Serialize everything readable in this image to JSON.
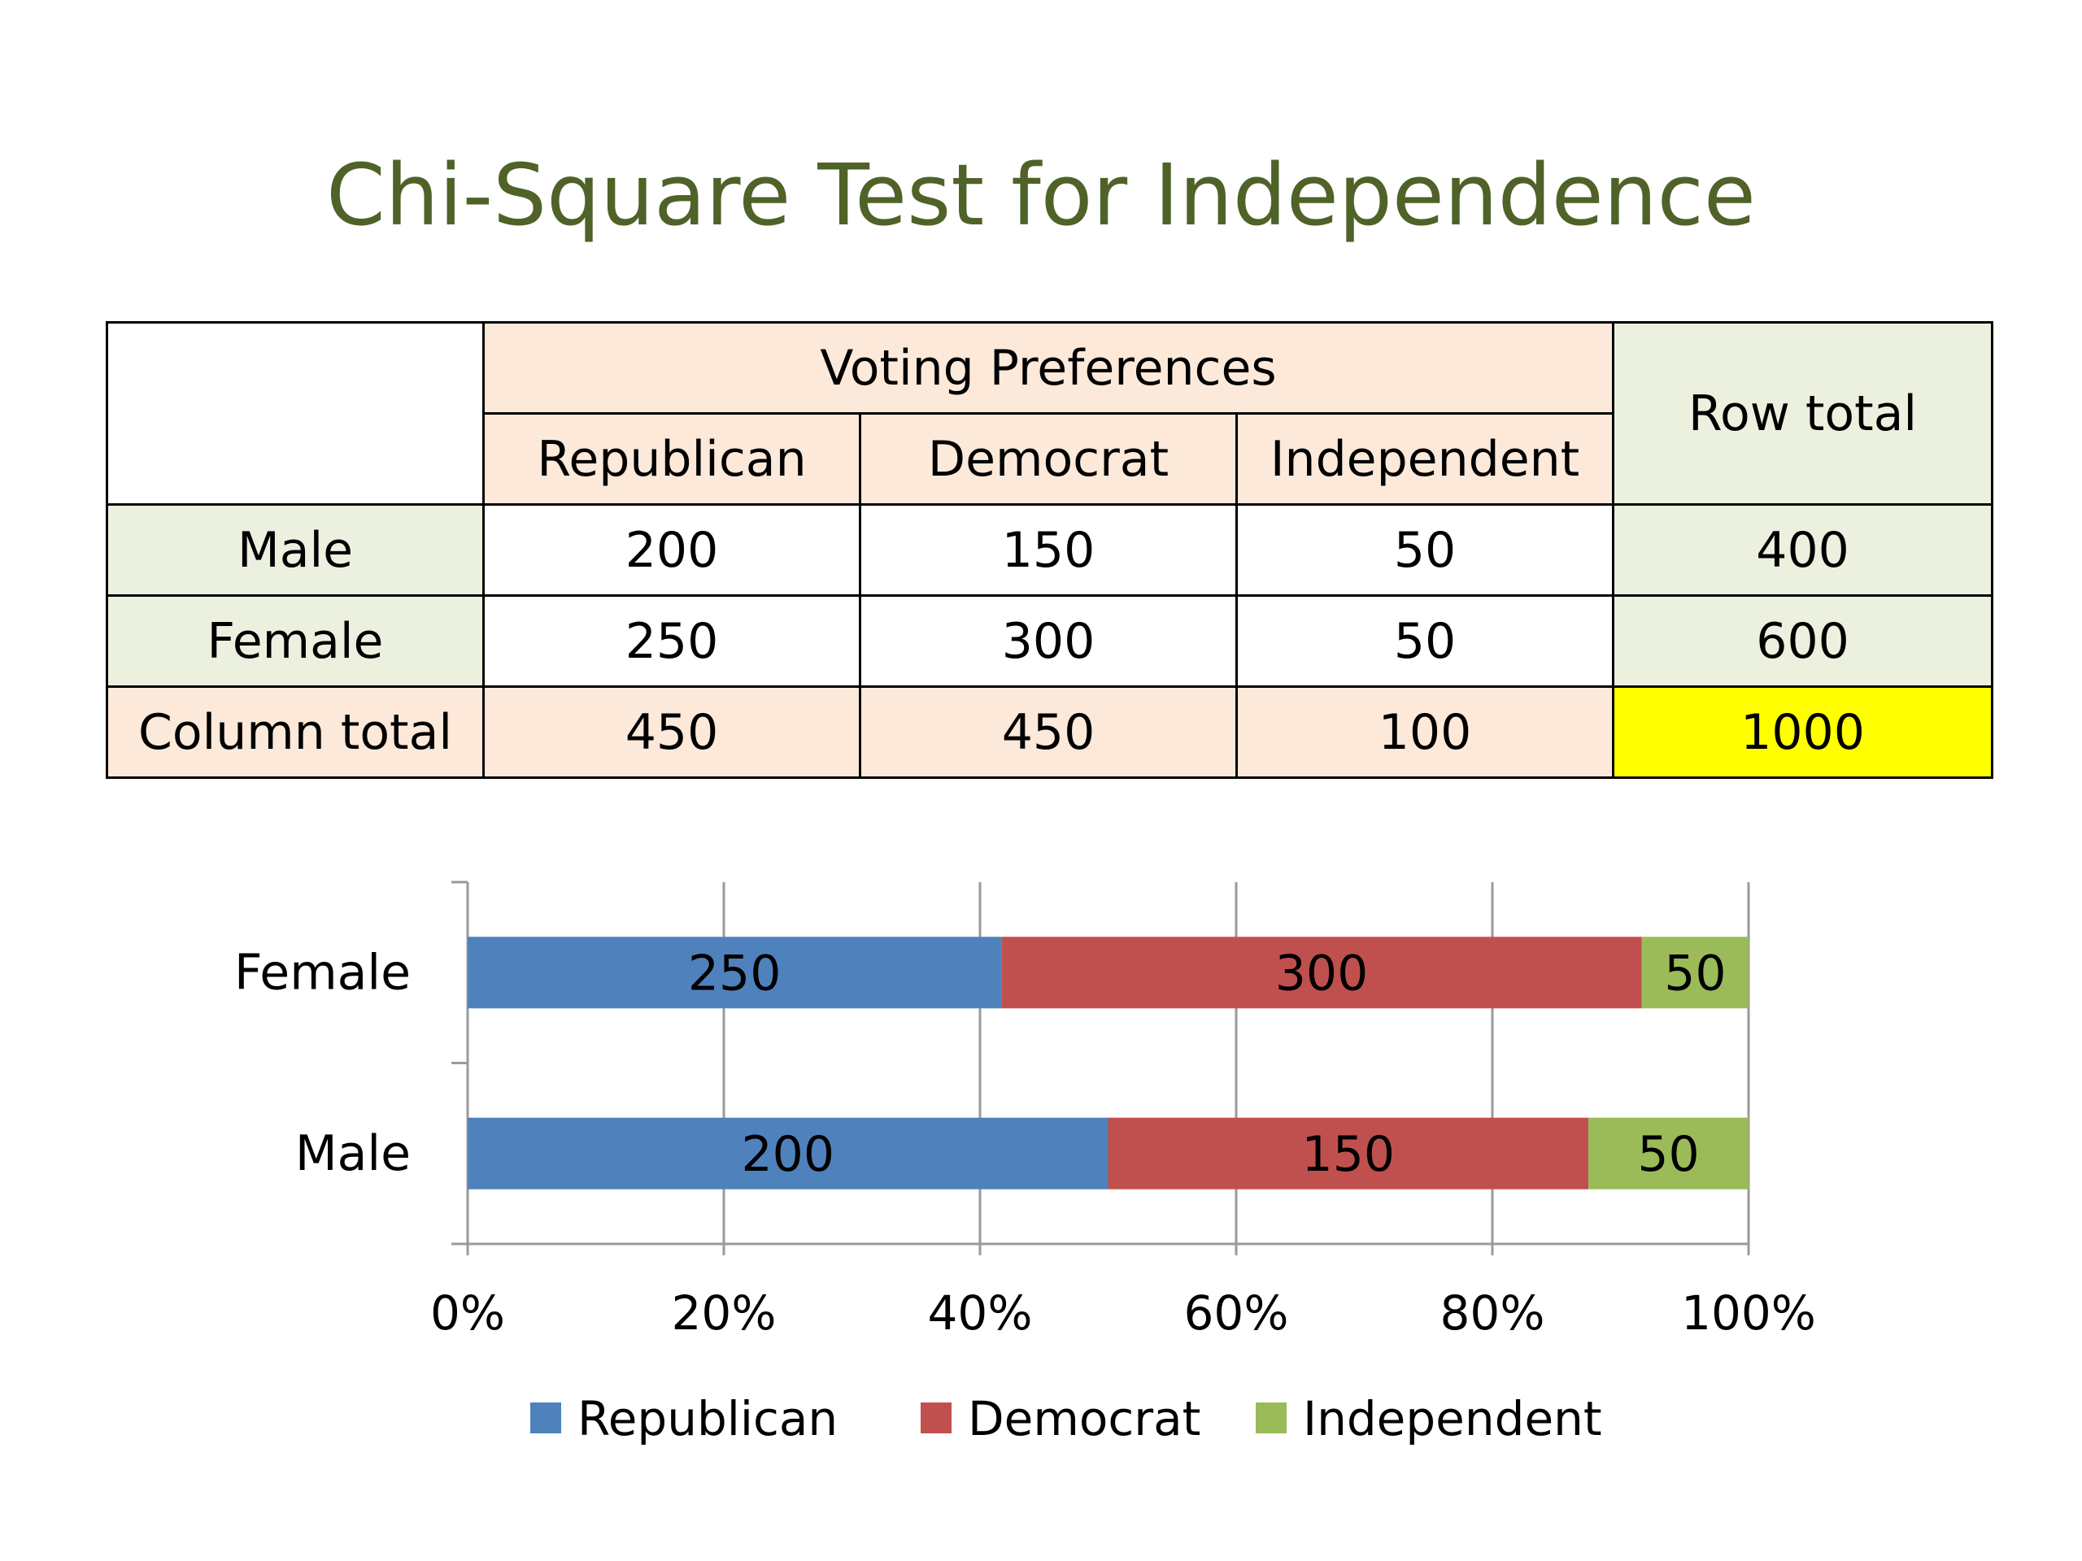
{
  "title": "Chi-Square Test for Independence",
  "table": {
    "group_header": "Voting Preferences",
    "row_total_header": "Row total",
    "columns": [
      "Republican",
      "Democrat",
      "Independent"
    ],
    "rows": [
      {
        "label": "Male",
        "values": [
          "200",
          "150",
          "50"
        ],
        "total": "400"
      },
      {
        "label": "Female",
        "values": [
          "250",
          "300",
          "50"
        ],
        "total": "600"
      }
    ],
    "column_total": {
      "label": "Column total",
      "values": [
        "450",
        "450",
        "100"
      ],
      "grand_total": "1000"
    }
  },
  "colors": {
    "title": "#4f6228",
    "header_fill": "#fce9da",
    "total_fill": "#ebf1de",
    "grand_total_fill": "#ffff00"
  },
  "chart_data": {
    "type": "bar",
    "orientation": "horizontal",
    "stacked": "percent",
    "categories": [
      "Male",
      "Female"
    ],
    "series": [
      {
        "name": "Republican",
        "values": [
          200,
          250
        ],
        "color": "#4f81bd"
      },
      {
        "name": "Democrat",
        "values": [
          150,
          300
        ],
        "color": "#c0504d"
      },
      {
        "name": "Independent",
        "values": [
          50,
          50
        ],
        "color": "#9bbb59"
      }
    ],
    "x_ticks": [
      "0%",
      "20%",
      "40%",
      "60%",
      "80%",
      "100%"
    ],
    "xlim": [
      0,
      100
    ],
    "grid": true,
    "legend": "bottom"
  }
}
